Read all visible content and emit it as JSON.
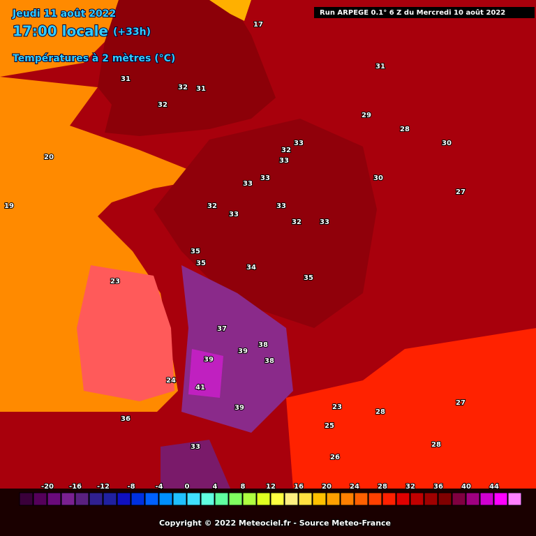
{
  "header": {
    "date": "Jeudi 11 août 2022",
    "time": "17:00 locale",
    "lead": "(+33h)",
    "field": "Températures à 2 mètres (°C)",
    "run": "Run ARPEGE 0.1° 6 Z du Mercredi 10 août 2022"
  },
  "map_labels": [
    32,
    31,
    32,
    31,
    33,
    33,
    32,
    33,
    33,
    32,
    33,
    33,
    32,
    33,
    35,
    35,
    34,
    35,
    37,
    39,
    38,
    39,
    41,
    38,
    39,
    31,
    30,
    29,
    28,
    30,
    27,
    25,
    23,
    28,
    27,
    28,
    20,
    19,
    23,
    24,
    17,
    36,
    33,
    26
  ],
  "scale": {
    "labels": [
      -20,
      -16,
      -12,
      -8,
      -4,
      0,
      4,
      8,
      12,
      16,
      20,
      24,
      28,
      32,
      36,
      40,
      44
    ]
  },
  "footer": {
    "copyright": "Copyright © 2022 Meteociel.fr - Source Meteo-France"
  }
}
